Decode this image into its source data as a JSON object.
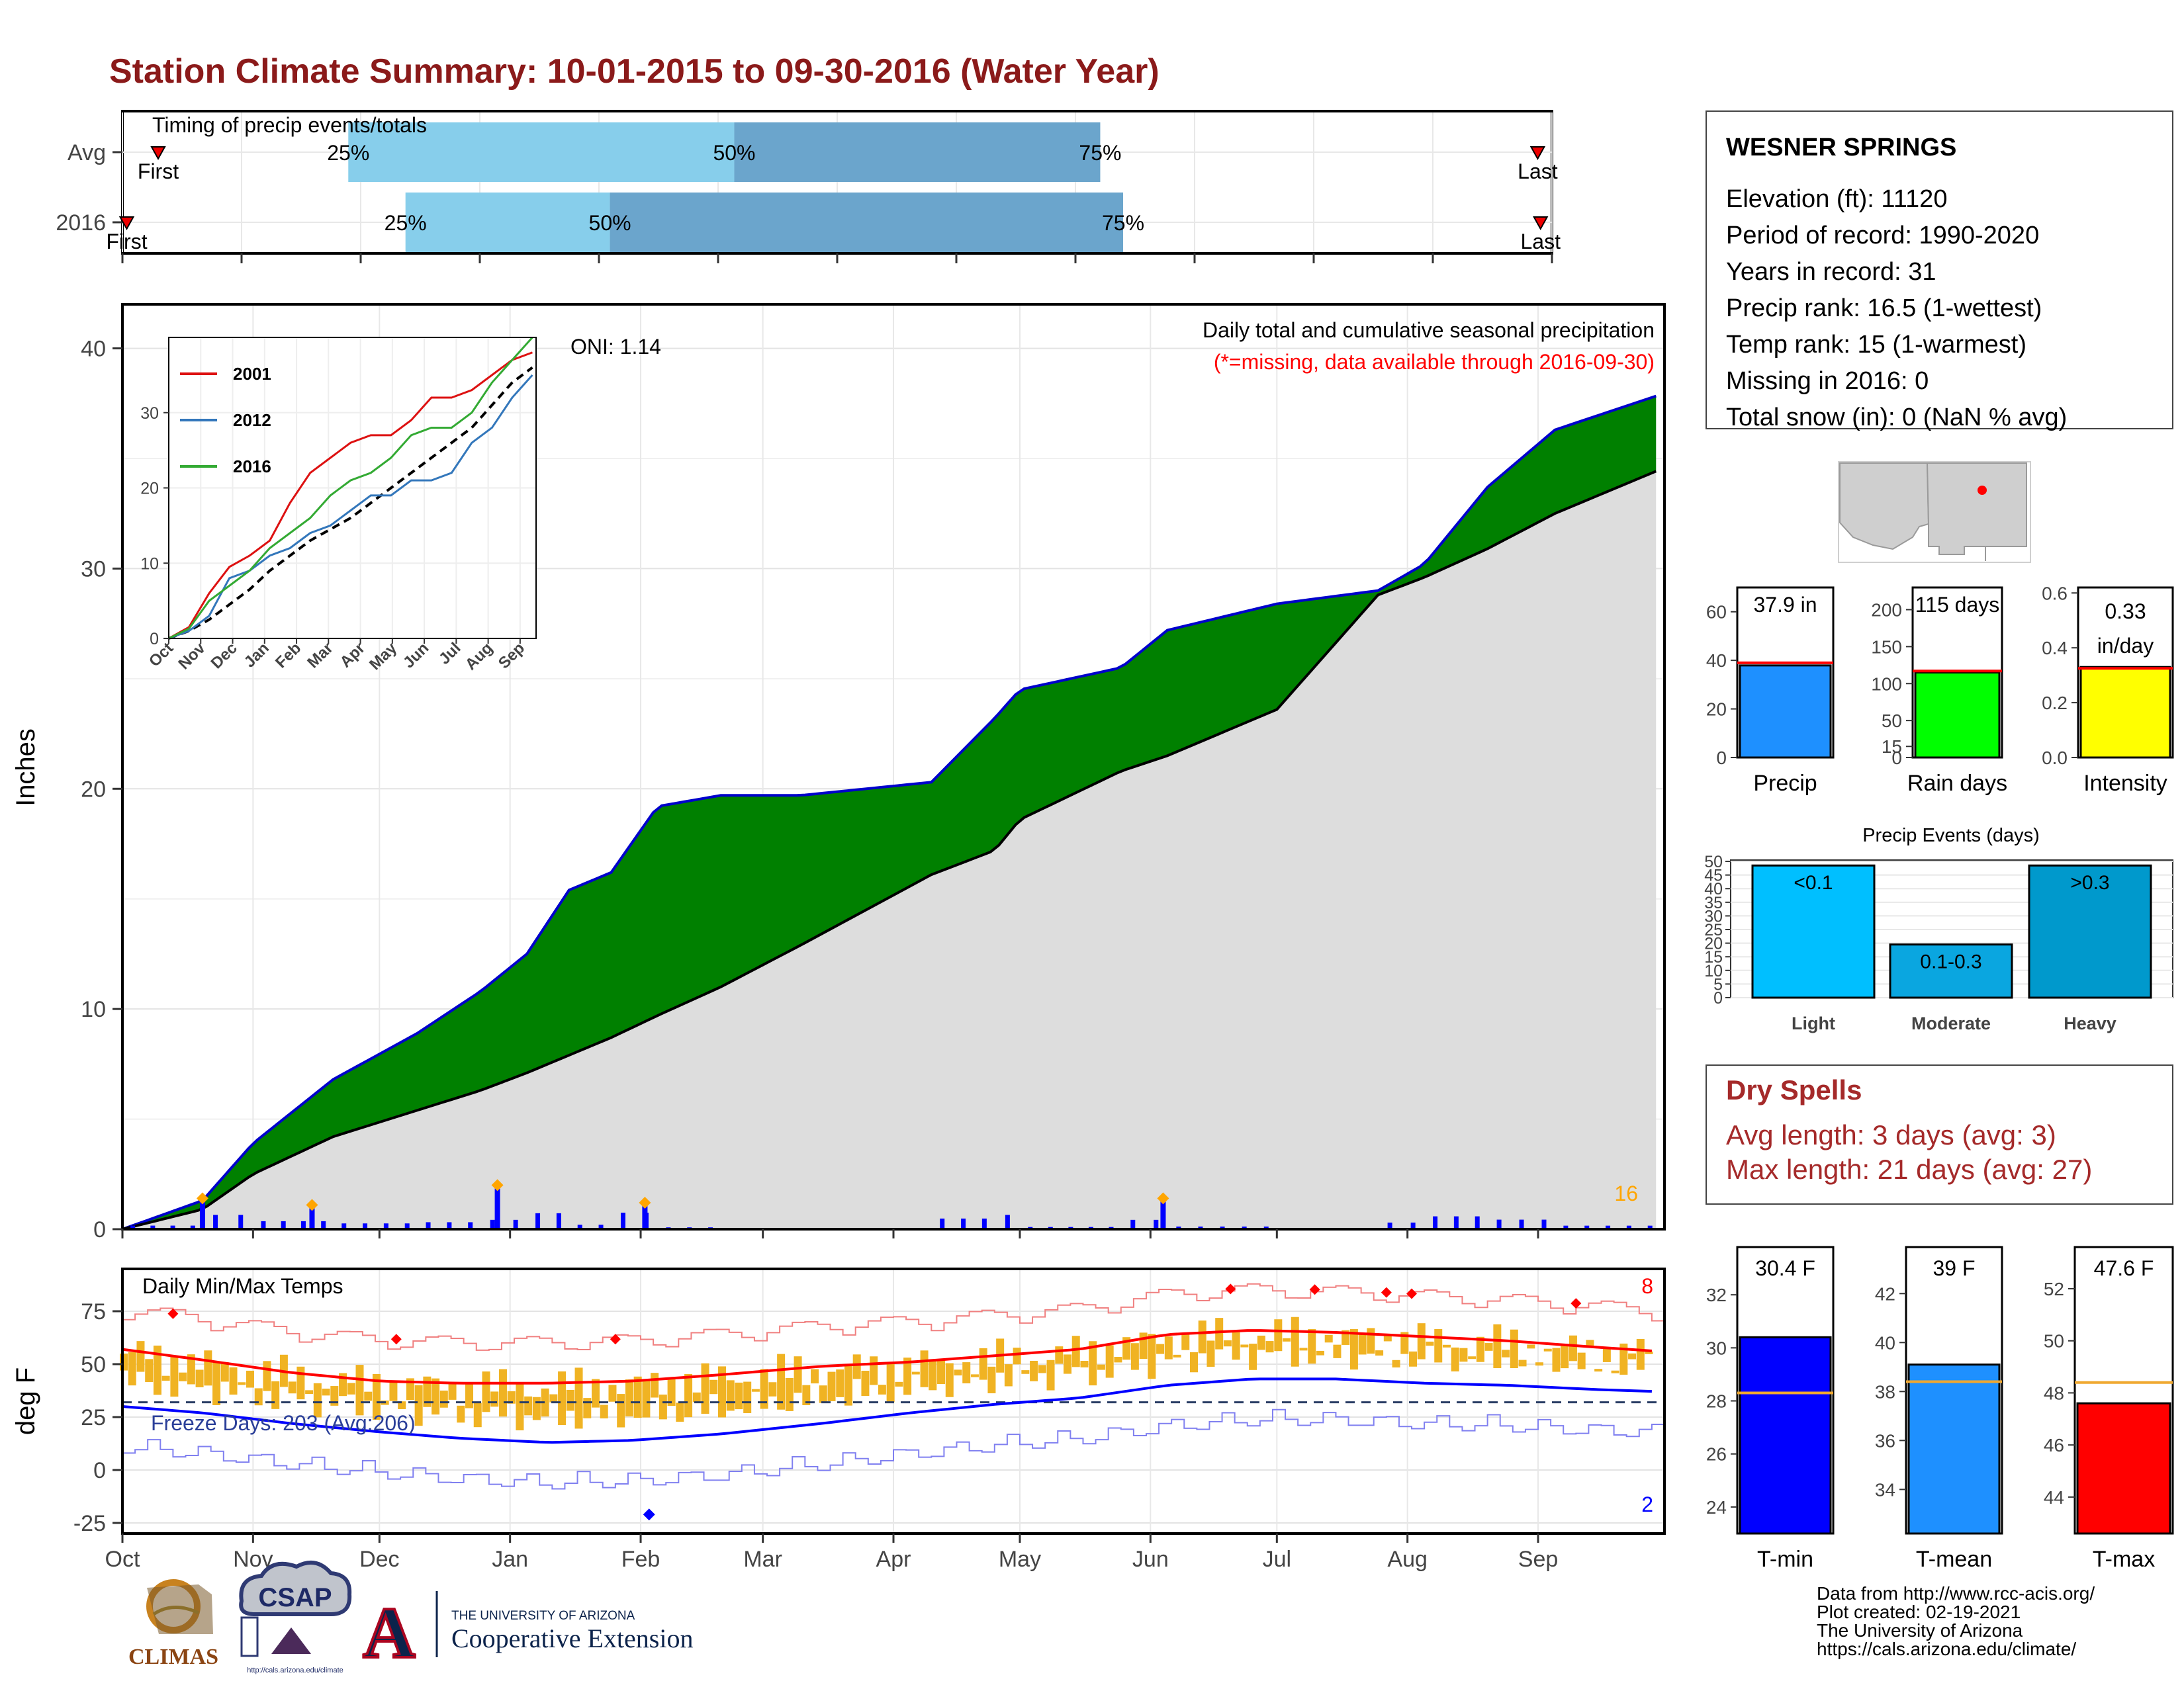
{
  "title": "Station Climate Summary: 10-01-2015 to 09-30-2016 (Water Year)",
  "colors": {
    "title": "#8b1a1a",
    "q_light": "#87ceeb",
    "q_dark": "#6ba5cc",
    "cum_green": "#008000",
    "cum_outline": "#0000cc",
    "avg_gray": "#dddddd",
    "precip_bar": "#1e90ff",
    "raindays_bar": "#00ff00",
    "intensity_bar": "#ffff00",
    "events_light": "#00bfff",
    "events_moderate": "#0aa6e0",
    "events_heavy": "#0099cc",
    "tmin_bar": "#0000ff",
    "tmean_bar": "#1e90ff",
    "tmax_bar": "#ff0000",
    "temp_range": "#f0b323",
    "dry_spells_text": "#a52a2a",
    "missing_note": "#ff0000",
    "count_orange": "#ffa500"
  },
  "timing_panel": {
    "title": "Timing of precip events/totals",
    "rows": [
      {
        "label": "Avg",
        "first_label": "First",
        "last_label": "Last",
        "q25": 0.158,
        "q50": 0.428,
        "q75": 0.684,
        "first": 0.025,
        "last": 0.99,
        "q25_label": "25%",
        "q50_label": "50%",
        "q75_label": "75%"
      },
      {
        "label": "2016",
        "first_label": "First",
        "last_label": "Last",
        "q25": 0.198,
        "q50": 0.341,
        "q75": 0.7,
        "first": 0.003,
        "last": 0.992,
        "q25_label": "25%",
        "q50_label": "50%",
        "q75_label": "75%"
      }
    ]
  },
  "months": [
    "Oct",
    "Nov",
    "Dec",
    "Jan",
    "Feb",
    "Mar",
    "Apr",
    "May",
    "Jun",
    "Jul",
    "Aug",
    "Sep"
  ],
  "precip_panel": {
    "title": "Daily total and cumulative seasonal precipitation",
    "note": "(*=missing, data available through 2016-09-30)",
    "oni": "ONI: 1.14",
    "ylabel": "Inches",
    "yticks": [
      0,
      10,
      20,
      30,
      40
    ],
    "count_label": "16"
  },
  "inset": {
    "series": [
      {
        "name": "2001",
        "color": "#dd1111"
      },
      {
        "name": "2012",
        "color": "#3377bb"
      },
      {
        "name": "2016",
        "color": "#33aa33"
      }
    ],
    "yticks": [
      0,
      10,
      20,
      30
    ],
    "xticks": [
      "Oct",
      "Nov",
      "Dec",
      "Jan",
      "Feb",
      "Mar",
      "Apr",
      "May",
      "Jun",
      "Jul",
      "Aug",
      "Sep"
    ]
  },
  "station": {
    "name": "WESNER SPRINGS",
    "lines": [
      "Elevation (ft): 11120",
      "Period of record: 1990-2020",
      "Years in record: 31",
      "Precip rank: 16.5 (1-wettest)",
      "Temp rank: 15 (1-warmest)",
      "Missing in 2016: 0",
      "Total snow (in): 0 (NaN % avg)"
    ]
  },
  "summary_bars": [
    {
      "label": "Precip",
      "value_label": "37.9 in",
      "value": 37.9,
      "avg": 39,
      "ymax": 70,
      "yticks": [
        0,
        20,
        40,
        60
      ]
    },
    {
      "label": "Rain days",
      "value_label": "115 days",
      "value": 115,
      "avg": 117,
      "ymax": 230,
      "yticks": [
        0,
        50,
        100,
        150,
        200
      ],
      "extra_ticks": [
        15
      ]
    },
    {
      "label": "Intensity",
      "value_label_lines": [
        "0.33",
        "in/day"
      ],
      "value": 0.33,
      "avg": 0.325,
      "ymax": 0.62,
      "yticks": [
        0.0,
        0.2,
        0.4,
        0.6
      ]
    }
  ],
  "precip_events": {
    "title": "Precip Events (days)",
    "categories": [
      "Light",
      "Moderate",
      "Heavy"
    ],
    "bar_labels": [
      "<0.1",
      "0.1-0.3",
      ">0.3"
    ],
    "values": [
      48.5,
      19.5,
      48.5
    ],
    "yticks": [
      0,
      5,
      10,
      15,
      20,
      25,
      30,
      35,
      40,
      45,
      50
    ]
  },
  "dry_spells": {
    "title": "Dry Spells",
    "avg_line": "Avg length: 3 days (avg: 3)",
    "max_line": "Max length: 21 days (avg: 27)"
  },
  "temp_panel": {
    "title": "Daily Min/Max Temps",
    "ylabel": "deg F",
    "yticks": [
      -25,
      0,
      25,
      50,
      75
    ],
    "freeze_label": "Freeze Days: 203 (Avg:206)",
    "hot_count": "8",
    "cold_count": "2"
  },
  "temp_bars": [
    {
      "label": "T-min",
      "value_label": "30.4 F",
      "value": 30.4,
      "avg": 28.3,
      "ymin": 23,
      "ymax": 33.8,
      "yticks": [
        24,
        26,
        28,
        30,
        32
      ]
    },
    {
      "label": "T-mean",
      "value_label": "39 F",
      "value": 39.1,
      "avg": 38.4,
      "ymin": 32.2,
      "ymax": 43.9,
      "yticks": [
        34,
        36,
        38,
        40,
        42
      ]
    },
    {
      "label": "T-max",
      "value_label": "47.6 F",
      "value": 47.6,
      "avg": 48.4,
      "ymin": 42.6,
      "ymax": 53.6,
      "yticks": [
        44,
        46,
        48,
        50,
        52
      ]
    }
  ],
  "chart_data": [
    {
      "type": "area",
      "title": "Daily total and cumulative seasonal precipitation",
      "ylabel": "Inches",
      "ylim": [
        0,
        42
      ],
      "x": [
        "Oct 1",
        "Oct 20",
        "Nov 1",
        "Nov 20",
        "Dec 10",
        "Dec 25",
        "Jan 5",
        "Jan 15",
        "Jan 25",
        "Feb 5",
        "Feb 20",
        "Mar 10",
        "Apr 10",
        "Apr 25",
        "May 1",
        "May 25",
        "Jun 5",
        "Jul 1",
        "Jul 25",
        "Aug 5",
        "Aug 20",
        "Sep 5",
        "Sep 30"
      ],
      "series": [
        {
          "name": "2016",
          "values": [
            0.0,
            1.3,
            3.9,
            6.8,
            8.9,
            10.8,
            12.5,
            15.4,
            16.2,
            19.2,
            19.7,
            19.7,
            20.3,
            23.2,
            24.5,
            25.5,
            27.2,
            28.4,
            29.0,
            30.2,
            33.7,
            36.3,
            37.9
          ]
        },
        {
          "values": [
            0.0,
            0.9,
            2.5,
            4.2,
            5.4,
            6.3,
            7.1,
            7.9,
            8.7,
            9.7,
            11.0,
            12.9,
            16.1,
            17.2,
            18.6,
            20.8,
            21.5,
            23.6,
            28.8,
            29.6,
            30.9,
            32.5,
            34.5
          ]
        }
      ],
      "daily_marked_events": [
        {
          "date": "Oct 20",
          "value": 1.4
        },
        {
          "date": "Nov 15",
          "value": 1.1
        },
        {
          "date": "Dec 29",
          "value": 2.0
        },
        {
          "date": "Feb 2",
          "value": 1.2
        },
        {
          "date": "Jun 4",
          "value": 1.4
        }
      ]
    },
    {
      "type": "line",
      "title": "Daily Min/Max Temps",
      "ylabel": "deg F",
      "ylim": [
        -28,
        95
      ],
      "x": [
        "Oct 1",
        "Oct 20",
        "Nov 10",
        "Dec 1",
        "Dec 20",
        "Jan 10",
        "Jan 30",
        "Feb 20",
        "Mar 15",
        "Apr 5",
        "Apr 25",
        "May 15",
        "Jun 5",
        "Jun 25",
        "Jul 15",
        "Aug 5",
        "Aug 25",
        "Sep 15",
        "Sep 30"
      ],
      "series": [
        {
          "name": "Tmax (avg)",
          "values": [
            57,
            52,
            46,
            42,
            41,
            41,
            42,
            45,
            49,
            51,
            54,
            57,
            64,
            66,
            65,
            63,
            61,
            58,
            56
          ]
        },
        {
          "name": "Tmin (avg)",
          "values": [
            30,
            27,
            22,
            18,
            15,
            13,
            14,
            17,
            22,
            27,
            31,
            34,
            40,
            43,
            43,
            41,
            40,
            38,
            37
          ]
        },
        {
          "name": "Freeze threshold",
          "values": [
            32,
            32,
            32,
            32,
            32,
            32,
            32,
            32,
            32,
            32,
            32,
            32,
            32,
            32,
            32,
            32,
            32,
            32,
            32
          ]
        }
      ]
    },
    {
      "type": "bar",
      "title": "Precip Events (days)",
      "categories": [
        "Light",
        "Moderate",
        "Heavy"
      ],
      "values": [
        48.5,
        19.5,
        48.5
      ],
      "ylim": [
        0,
        50
      ]
    }
  ],
  "logos": {
    "climas": "CLIMAS",
    "csap": "CSAP",
    "csap_url": "http://cals.arizona.edu/climate",
    "ua_small": "THE UNIVERSITY OF ARIZONA",
    "ua_big": "Cooperative Extension"
  },
  "footer": [
    "Data from http://www.rcc-acis.org/",
    "Plot created: 02-19-2021",
    "The University of Arizona",
    "https://cals.arizona.edu/climate/"
  ]
}
